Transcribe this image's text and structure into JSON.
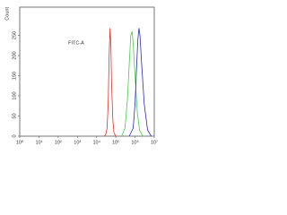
{
  "chart_data": {
    "type": "line",
    "xlabel": "FITC-A",
    "ylabel": "Count",
    "log_x": true,
    "xlim": [
      1,
      10000000
    ],
    "ylim": [
      0,
      320
    ],
    "xticks": [
      {
        "value": 1,
        "label": "10⁰"
      },
      {
        "value": 10,
        "label": "10¹"
      },
      {
        "value": 100,
        "label": "10²"
      },
      {
        "value": 1000,
        "label": "10³"
      },
      {
        "value": 10000,
        "label": "10⁴"
      },
      {
        "value": 100000,
        "label": "10⁵"
      },
      {
        "value": 1000000,
        "label": "10⁶"
      },
      {
        "value": 10000000,
        "label": "10⁷"
      }
    ],
    "yticks": [
      0,
      50,
      100,
      150,
      200,
      250
    ],
    "series": [
      {
        "color": "#e0312a",
        "x": [
          25000,
          30000,
          35000,
          40000,
          45000,
          50000,
          55000,
          60000,
          70000,
          80000,
          100000
        ],
        "values": [
          0,
          4,
          20,
          80,
          200,
          268,
          230,
          130,
          40,
          8,
          0
        ]
      },
      {
        "color": "#46cc46",
        "x": [
          200000,
          300000,
          400000,
          500000,
          600000,
          700000,
          800000,
          1000000,
          1300000,
          1700000,
          2500000
        ],
        "values": [
          0,
          20,
          90,
          180,
          250,
          260,
          230,
          150,
          60,
          15,
          0
        ]
      },
      {
        "color": "#2a2ab8",
        "x": [
          500000,
          800000,
          1000000,
          1200000,
          1400000,
          1600000,
          1800000,
          2200000,
          3000000,
          4500000,
          7000000
        ],
        "values": [
          0,
          20,
          80,
          170,
          240,
          268,
          250,
          180,
          80,
          15,
          0
        ]
      }
    ]
  }
}
